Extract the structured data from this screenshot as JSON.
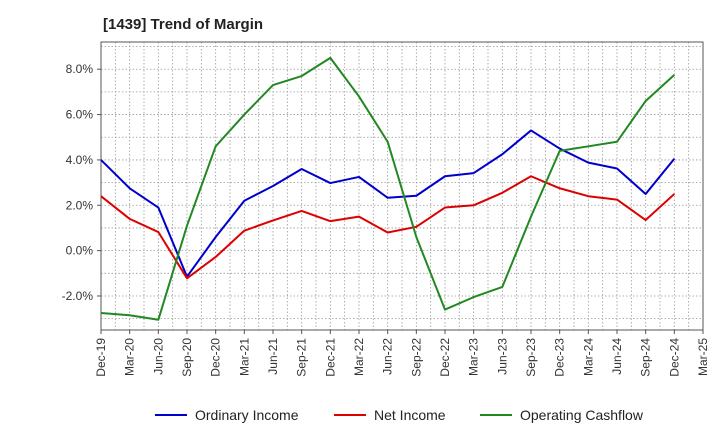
{
  "chart_data": {
    "type": "line",
    "title": "[1439]  Trend of Margin",
    "xlabel": "",
    "ylabel": "",
    "x": [
      "Dec-19",
      "Mar-20",
      "Jun-20",
      "Sep-20",
      "Dec-20",
      "Mar-21",
      "Jun-21",
      "Sep-21",
      "Dec-21",
      "Mar-22",
      "Jun-22",
      "Sep-22",
      "Dec-22",
      "Mar-23",
      "Jun-23",
      "Sep-23",
      "Dec-23",
      "Mar-24",
      "Jun-24",
      "Sep-24",
      "Dec-24",
      "Mar-25"
    ],
    "yticks": [
      {
        "value": 8,
        "label": "8.0%"
      },
      {
        "value": 6,
        "label": "6.0%"
      },
      {
        "value": 4,
        "label": "4.0%"
      },
      {
        "value": 2,
        "label": "2.0%"
      },
      {
        "value": 0,
        "label": "0.0%"
      },
      {
        "value": -2,
        "label": "-2.0%"
      }
    ],
    "ylim": [
      -3.5,
      9.2
    ],
    "grid": true,
    "legend_position": "bottom",
    "series": [
      {
        "name": "Ordinary Income",
        "color": "#0000cc",
        "values": [
          4.0,
          2.75,
          1.9,
          -1.15,
          0.6,
          2.2,
          2.85,
          3.6,
          2.98,
          3.25,
          2.33,
          2.42,
          3.28,
          3.42,
          4.25,
          5.3,
          4.5,
          3.88,
          3.62,
          2.5,
          4.05,
          null
        ]
      },
      {
        "name": "Net Income",
        "color": "#dd0000",
        "values": [
          2.4,
          1.4,
          0.82,
          -1.22,
          -0.28,
          0.88,
          1.33,
          1.75,
          1.3,
          1.5,
          0.8,
          1.05,
          1.9,
          2.0,
          2.55,
          3.28,
          2.75,
          2.4,
          2.25,
          1.35,
          2.5,
          null
        ]
      },
      {
        "name": "Operating Cashflow",
        "color": "#228822",
        "values": [
          -2.75,
          -2.85,
          -3.05,
          1.1,
          4.6,
          6.0,
          7.3,
          7.7,
          8.5,
          6.8,
          4.8,
          0.6,
          -2.6,
          -2.05,
          -1.6,
          1.5,
          4.4,
          4.6,
          4.8,
          6.6,
          7.75,
          null
        ]
      }
    ]
  }
}
